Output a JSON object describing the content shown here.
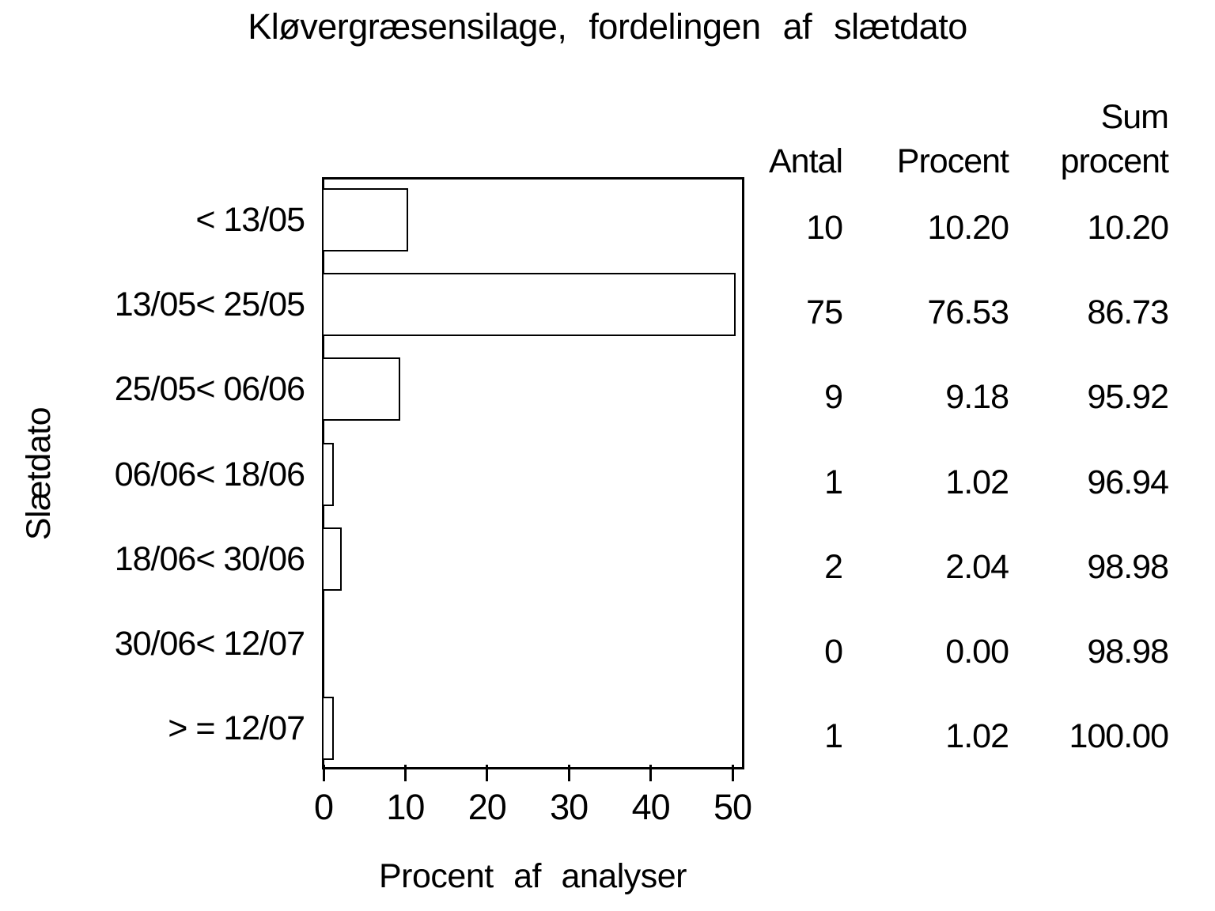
{
  "title": "Kløvergræsensilage, fordelingen af slætdato",
  "y_axis": {
    "label": "Slætdato"
  },
  "x_axis": {
    "label": "Procent af analyser",
    "ticks": [
      "0",
      "10",
      "20",
      "30",
      "40",
      "50"
    ],
    "max": 50
  },
  "table": {
    "headers": {
      "antal": "Antal",
      "procent": "Procent",
      "sum_line1": "Sum",
      "sum_line2": "procent"
    },
    "rows": [
      {
        "label": "< 13/05",
        "antal": "10",
        "procent": "10.20",
        "sum": "10.20"
      },
      {
        "label": "13/05< 25/05",
        "antal": "75",
        "procent": "76.53",
        "sum": "86.73"
      },
      {
        "label": "25/05< 06/06",
        "antal": "9",
        "procent": "9.18",
        "sum": "95.92"
      },
      {
        "label": "06/06< 18/06",
        "antal": "1",
        "procent": "1.02",
        "sum": "96.94"
      },
      {
        "label": "18/06< 30/06",
        "antal": "2",
        "procent": "2.04",
        "sum": "98.98"
      },
      {
        "label": "30/06< 12/07",
        "antal": "0",
        "procent": "0.00",
        "sum": "98.98"
      },
      {
        "label": "> = 12/07",
        "antal": "1",
        "procent": "1.02",
        "sum": "100.00"
      }
    ]
  },
  "chart_data": {
    "type": "bar",
    "orientation": "horizontal",
    "title": "Kløvergræsensilage, fordelingen af slætdato",
    "xlabel": "Procent af analyser",
    "ylabel": "Slætdato",
    "xlim": [
      0,
      50
    ],
    "xticks": [
      0,
      10,
      20,
      30,
      40,
      50
    ],
    "grid": false,
    "legend": "none",
    "categories": [
      "< 13/05",
      "13/05< 25/05",
      "25/05< 06/06",
      "06/06< 18/06",
      "18/06< 30/06",
      "30/06< 12/07",
      "> = 12/07"
    ],
    "series": [
      {
        "name": "Antal",
        "values": [
          10,
          75,
          9,
          1,
          2,
          0,
          1
        ]
      },
      {
        "name": "Procent",
        "values": [
          10.2,
          76.53,
          9.18,
          1.02,
          2.04,
          0.0,
          1.02
        ]
      },
      {
        "name": "Sum procent",
        "values": [
          10.2,
          86.73,
          95.92,
          96.94,
          98.98,
          98.98,
          100.0
        ]
      }
    ],
    "bar_length_series": "Procent",
    "bar_clipped_at_axis_max": true,
    "bar_color": "#e02020",
    "bar_pattern": "crosshatch",
    "frame_color": "#000000",
    "background": "#ffffff"
  }
}
